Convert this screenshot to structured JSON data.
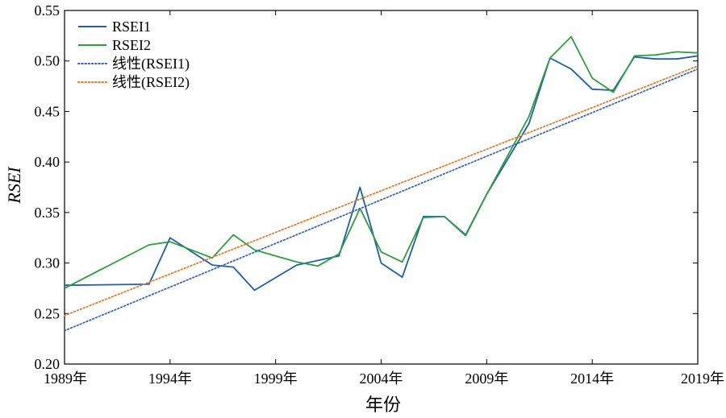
{
  "chart_data": {
    "type": "line",
    "xlabel": "年份",
    "ylabel": "RSEI",
    "xlim": [
      1989,
      2019
    ],
    "ylim": [
      0.2,
      0.55
    ],
    "x_ticks": [
      1989,
      1994,
      1999,
      2004,
      2009,
      2014,
      2019
    ],
    "x_tick_labels": [
      "1989年",
      "1994年",
      "1999年",
      "2004年",
      "2009年",
      "2014年",
      "2019年"
    ],
    "y_ticks": [
      0.2,
      0.25,
      0.3,
      0.35,
      0.4,
      0.45,
      0.5,
      0.55
    ],
    "y_tick_labels": [
      "0.20",
      "0.25",
      "0.30",
      "0.35",
      "0.40",
      "0.45",
      "0.50",
      "0.55"
    ],
    "legend_position": "top-left",
    "grid": false,
    "series": [
      {
        "name": "RSEI1",
        "style": "solid",
        "color": "#1f5fa8",
        "points": [
          [
            1989,
            0.278
          ],
          [
            1993,
            0.279
          ],
          [
            1994,
            0.325
          ],
          [
            1996,
            0.298
          ],
          [
            1997,
            0.296
          ],
          [
            1998,
            0.273
          ],
          [
            2000,
            0.298
          ],
          [
            2002,
            0.307
          ],
          [
            2003,
            0.375
          ],
          [
            2004,
            0.3
          ],
          [
            2005,
            0.286
          ],
          [
            2006,
            0.346
          ],
          [
            2007,
            0.346
          ],
          [
            2008,
            0.328
          ],
          [
            2009,
            0.368
          ],
          [
            2011,
            0.438
          ],
          [
            2012,
            0.503
          ],
          [
            2013,
            0.492
          ],
          [
            2014,
            0.472
          ],
          [
            2015,
            0.471
          ],
          [
            2016,
            0.504
          ],
          [
            2017,
            0.502
          ],
          [
            2018,
            0.502
          ],
          [
            2019,
            0.505
          ]
        ]
      },
      {
        "name": "RSEI2",
        "style": "solid",
        "color": "#2e9e3f",
        "points": [
          [
            1989,
            0.275
          ],
          [
            1993,
            0.318
          ],
          [
            1994,
            0.321
          ],
          [
            1996,
            0.305
          ],
          [
            1997,
            0.328
          ],
          [
            1998,
            0.313
          ],
          [
            2000,
            0.301
          ],
          [
            2001,
            0.297
          ],
          [
            2002,
            0.309
          ],
          [
            2003,
            0.354
          ],
          [
            2004,
            0.311
          ],
          [
            2005,
            0.301
          ],
          [
            2006,
            0.345
          ],
          [
            2007,
            0.346
          ],
          [
            2008,
            0.327
          ],
          [
            2009,
            0.368
          ],
          [
            2011,
            0.445
          ],
          [
            2012,
            0.503
          ],
          [
            2013,
            0.524
          ],
          [
            2014,
            0.483
          ],
          [
            2015,
            0.469
          ],
          [
            2016,
            0.505
          ],
          [
            2017,
            0.506
          ],
          [
            2018,
            0.509
          ],
          [
            2019,
            0.508
          ]
        ]
      },
      {
        "name": "线性(RSEI1)",
        "style": "dotted",
        "color": "#3a64b5",
        "points": [
          [
            1989,
            0.233
          ],
          [
            2019,
            0.492
          ]
        ]
      },
      {
        "name": "线性(RSEI2)",
        "style": "dotted",
        "color": "#e07b2f",
        "points": [
          [
            1989,
            0.248
          ],
          [
            2019,
            0.495
          ]
        ]
      }
    ]
  }
}
